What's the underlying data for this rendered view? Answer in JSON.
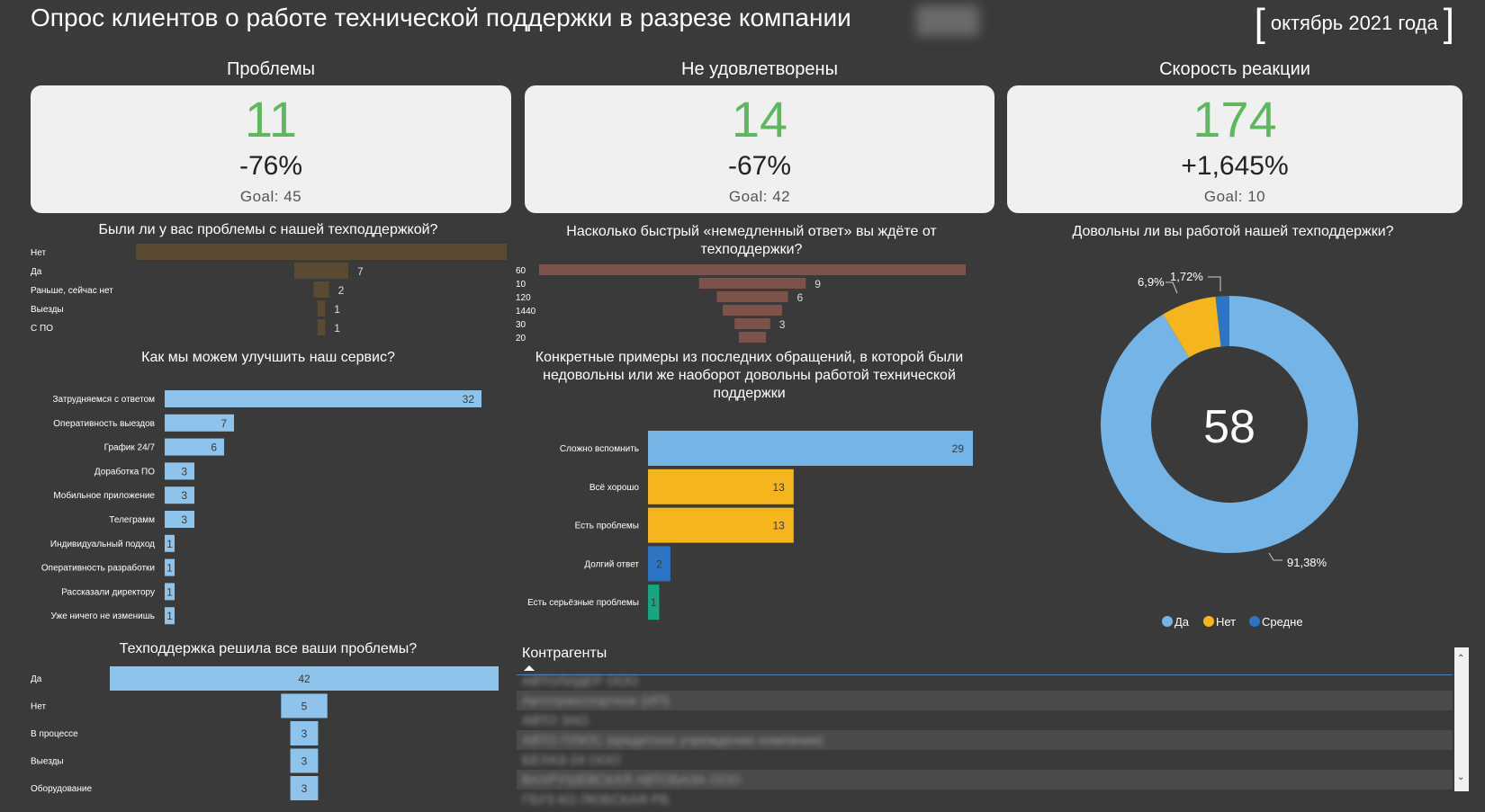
{
  "header": {
    "title": "Опрос клиентов о работе технической поддержки в разрезе компании",
    "period": "октябрь 2021 года",
    "bracket_open": "[",
    "bracket_close": "]"
  },
  "kpis": [
    {
      "heading": "Проблемы",
      "value": "11",
      "change": "-76%",
      "goal": "Goal: 45"
    },
    {
      "heading": "Не удовлетворены",
      "value": "14",
      "change": "-67%",
      "goal": "Goal: 42"
    },
    {
      "heading": "Скорость реакции",
      "value": "174",
      "change": "+1,645%",
      "goal": "Goal: 10"
    }
  ],
  "questions": {
    "q1": "Были ли у вас проблемы с нашей техподдержкой?",
    "q2": "Насколько быстрый «немедленный ответ» вы ждёте от техподдержки?",
    "q3": "Довольны ли вы работой нашей техподдержки?",
    "q4": "Как мы можем улучшить наш сервис?",
    "q5": "Конкретные примеры из последних обращений, в которой были недовольны или же наоборот довольны работой технической поддержки",
    "q6": "Техподдержка решила все ваши проблемы?"
  },
  "colors": {
    "background": "#3a3a3a",
    "kpi_green": "#5fb85f",
    "funnel_brown": "#5a4a32",
    "funnel_red": "#7d524a",
    "bar_blue": "#8ec3ec",
    "donut_blue": "#75b4e6",
    "donut_yellow": "#f5b51c",
    "donut_dark_blue": "#2c74c4",
    "green": "#13a882"
  },
  "chart_data": [
    {
      "type": "bar",
      "title": "Были ли у вас проблемы с нашей техподдержкой?",
      "categories": [
        "Нет",
        "Да",
        "Раньше, сейчас нет",
        "Выезды",
        "С ПО"
      ],
      "values": [
        48,
        7,
        2,
        1,
        1
      ],
      "value_labels": [
        "",
        "7",
        "2",
        "1",
        "1"
      ]
    },
    {
      "type": "bar",
      "title": "Насколько быстрый «немедленный ответ» вы ждёте от техподдержки?",
      "categories": [
        "60",
        "10",
        "120",
        "1440",
        "30",
        "20"
      ],
      "values": [
        36,
        9,
        6,
        5,
        3,
        2
      ],
      "value_labels": [
        "",
        "9",
        "6",
        "",
        "3",
        ""
      ]
    },
    {
      "type": "pie",
      "title": "Довольны ли вы работой нашей техподдержки?",
      "center_label": "58",
      "categories": [
        "Да",
        "Нет",
        "Средне"
      ],
      "values": [
        91.38,
        6.9,
        1.72
      ],
      "value_labels": [
        "91,38%",
        "6,9%",
        "1,72%"
      ],
      "legend": "bottom"
    },
    {
      "type": "bar",
      "title": "Как мы можем улучшить наш сервис?",
      "categories": [
        "Затрудняемся с ответом",
        "Оперативность выездов",
        "График 24/7",
        "Доработка ПО",
        "Мобильное приложение",
        "Телеграмм",
        "Индивидуальный подход",
        "Оперативность разработки",
        "Рассказали директору",
        "Уже ничего не изменишь"
      ],
      "values": [
        32,
        7,
        6,
        3,
        3,
        3,
        1,
        1,
        1,
        1
      ]
    },
    {
      "type": "bar",
      "title": "Конкретные примеры из последних обращений, в которой были недовольны или же наоборот довольны работой технической поддержки",
      "categories": [
        "Сложно вспомнить",
        "Всё хорошо",
        "Есть проблемы",
        "Долгий ответ",
        "Есть серьёзные проблемы"
      ],
      "values": [
        29,
        13,
        13,
        2,
        1
      ]
    },
    {
      "type": "bar",
      "title": "Техподдержка решила все ваши проблемы?",
      "categories": [
        "Да",
        "Нет",
        "В процессе",
        "Выезды",
        "Оборудование"
      ],
      "values": [
        42,
        5,
        3,
        3,
        3
      ]
    }
  ],
  "table": {
    "title": "Контрагенты",
    "rows": [
      "АВТОЛИДЕР ООО",
      "Автотранспортное (ИП)",
      "АВТО ЗАО",
      "АВТО ПЛЮС (кредитное учреждение компании)",
      "БЕЛАЗ-24 ООО",
      "ВАХРУШЕВСКАЯ АВТОБАЗА ООО",
      "ГБУЗ КО ЛЮБСКАЯ РБ"
    ]
  }
}
